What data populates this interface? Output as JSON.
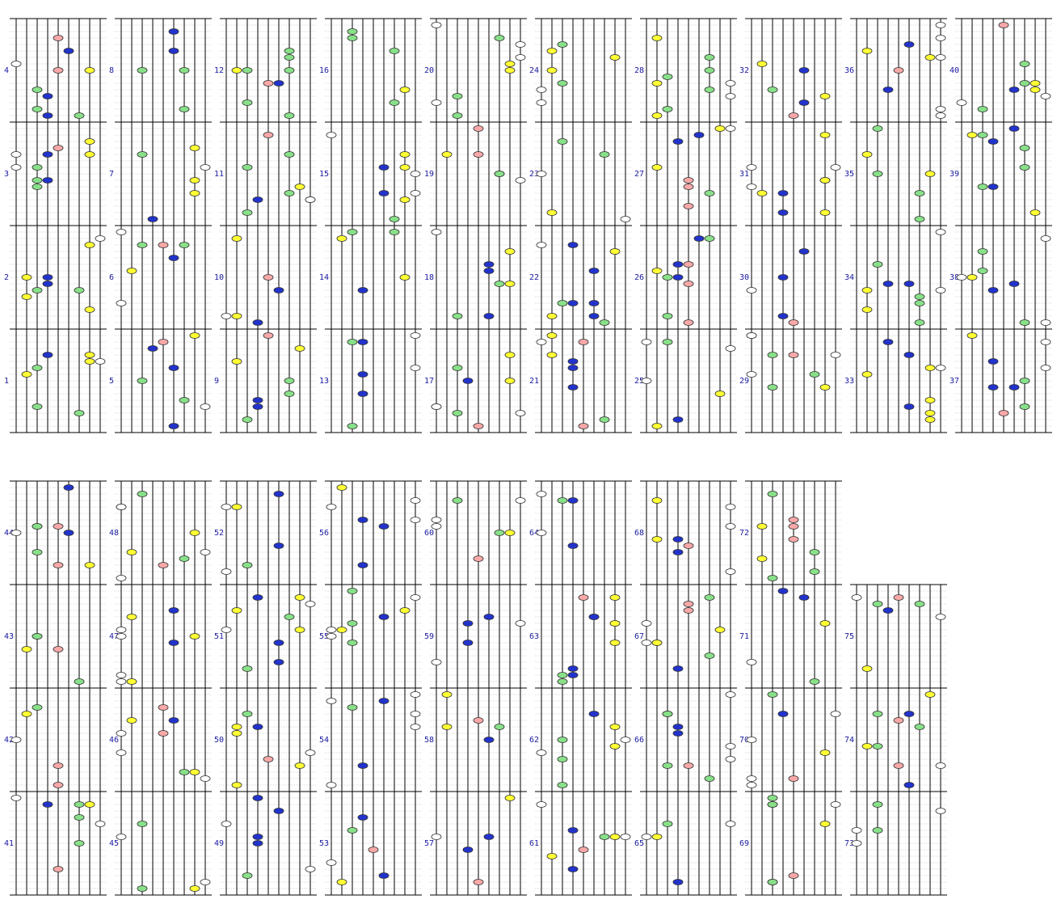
{
  "measures": [
    1,
    2,
    3,
    4,
    5,
    6,
    7,
    8,
    9,
    10,
    11,
    12,
    13,
    14,
    15,
    16,
    17,
    18,
    19,
    20,
    21,
    22,
    23,
    24,
    25,
    26,
    27,
    28,
    29,
    30,
    31,
    32,
    33,
    34,
    35,
    36,
    37,
    38,
    39,
    40,
    41,
    42,
    43,
    44,
    45,
    46,
    47,
    48,
    49,
    50,
    51,
    52,
    53,
    54,
    55,
    56,
    57,
    58,
    59,
    60,
    61,
    62,
    63,
    64,
    65,
    66,
    67,
    68,
    69,
    70,
    71,
    72,
    73,
    74,
    75
  ]
}
